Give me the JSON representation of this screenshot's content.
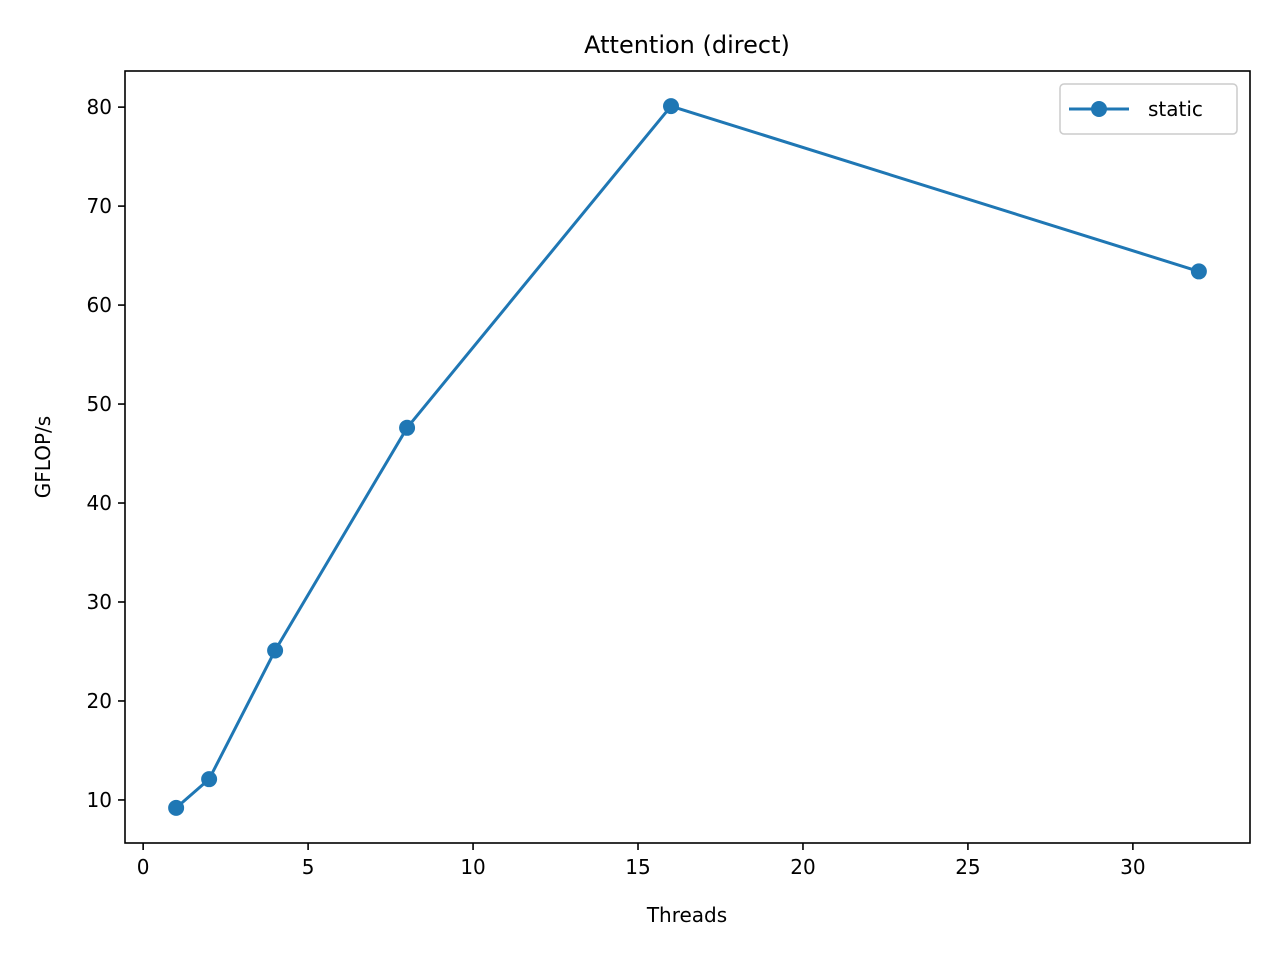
{
  "chart_data": {
    "type": "line",
    "title": "Attention (direct)",
    "xlabel": "Threads",
    "ylabel": "GFLOP/s",
    "xlim": [
      -0.55,
      33.55
    ],
    "ylim": [
      5.65,
      83.65
    ],
    "xticks": [
      0,
      5,
      10,
      15,
      20,
      25,
      30
    ],
    "yticks": [
      10,
      20,
      30,
      40,
      50,
      60,
      70,
      80
    ],
    "grid": false,
    "legend_position": "top-right",
    "series": [
      {
        "name": "static",
        "color": "#1f77b4",
        "marker": "circle",
        "x": [
          1,
          2,
          4,
          8,
          16,
          32
        ],
        "y": [
          9.2,
          12.1,
          25.1,
          47.6,
          80.1,
          63.4
        ]
      }
    ]
  }
}
